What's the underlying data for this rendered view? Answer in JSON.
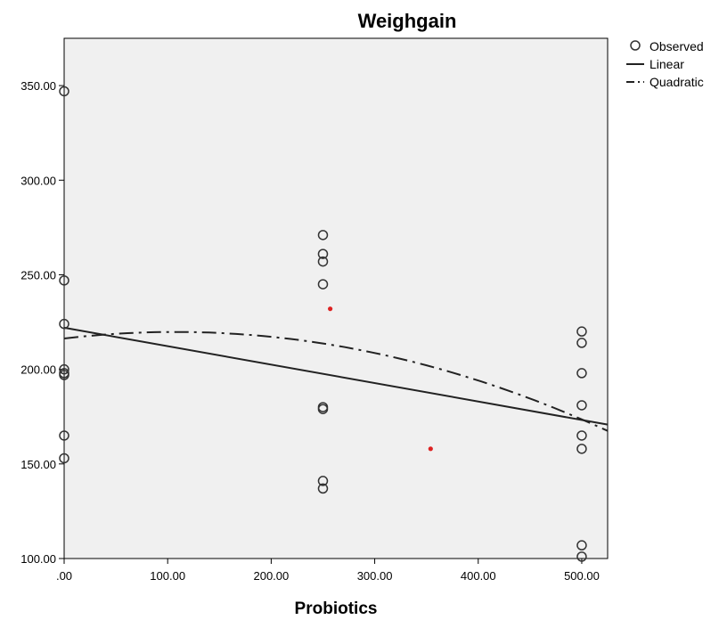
{
  "chart_data": {
    "type": "scatter",
    "title": "Weighgain",
    "xlabel": "Probiotics",
    "ylabel": "",
    "xlim": [
      0,
      525
    ],
    "ylim": [
      100,
      375
    ],
    "x_ticks": [
      0,
      100,
      200,
      300,
      400,
      500
    ],
    "x_tick_labels": [
      ".00",
      "100.00",
      "200.00",
      "300.00",
      "400.00",
      "500.00"
    ],
    "y_ticks": [
      100,
      150,
      200,
      250,
      300,
      350
    ],
    "y_tick_labels": [
      "100.00",
      "150.00",
      "200.00",
      "250.00",
      "300.00",
      "350.00"
    ],
    "grid": false,
    "legend_position": "right",
    "colors": {
      "plot_background": "#f0f0f0",
      "marker_stroke": "#333333",
      "line": "#222222",
      "highlight": "#dd2222"
    },
    "series": [
      {
        "name": "Observed",
        "kind": "markers",
        "points": [
          [
            0,
            347
          ],
          [
            0,
            247
          ],
          [
            0,
            224
          ],
          [
            0,
            200
          ],
          [
            0,
            198
          ],
          [
            0,
            197
          ],
          [
            0,
            165
          ],
          [
            0,
            153
          ],
          [
            250,
            271
          ],
          [
            250,
            261
          ],
          [
            250,
            257
          ],
          [
            250,
            245
          ],
          [
            250,
            180
          ],
          [
            250,
            179
          ],
          [
            250,
            141
          ],
          [
            250,
            137
          ],
          [
            500,
            220
          ],
          [
            500,
            214
          ],
          [
            500,
            198
          ],
          [
            500,
            181
          ],
          [
            500,
            165
          ],
          [
            500,
            158
          ],
          [
            500,
            107
          ],
          [
            500,
            101
          ]
        ]
      },
      {
        "name": "Linear",
        "kind": "line",
        "style": "solid",
        "intercept": 222,
        "slope": -0.0975
      },
      {
        "name": "Quadratic",
        "kind": "line",
        "style": "dashdot",
        "coefficients": [
          216.3,
          0.0645,
          -0.0003
        ]
      }
    ],
    "annotations": [
      {
        "kind": "dot",
        "x": 257,
        "y": 232
      },
      {
        "kind": "dot",
        "x": 354,
        "y": 158
      }
    ]
  }
}
